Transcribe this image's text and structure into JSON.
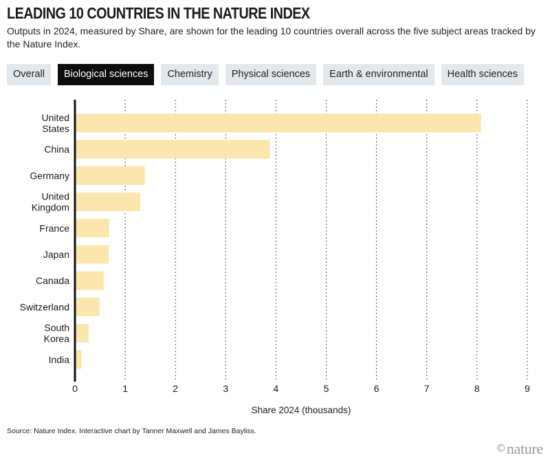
{
  "title": "LEADING 10 COUNTRIES IN THE NATURE INDEX",
  "subtitle": "Outputs in 2024, measured by Share, are shown for the leading 10 countries overall across the five subject areas tracked by the Nature Index.",
  "tabs": [
    {
      "label": "Overall",
      "active": false
    },
    {
      "label": "Biological sciences",
      "active": true
    },
    {
      "label": "Chemistry",
      "active": false
    },
    {
      "label": "Physical sciences",
      "active": false
    },
    {
      "label": "Earth & environmental",
      "active": false
    },
    {
      "label": "Health sciences",
      "active": false
    }
  ],
  "source": "Source: Nature Index. Interactive chart by Tanner Maxwell and James Bayliss.",
  "brand": {
    "symbol": "©",
    "name": "nature"
  },
  "colors": {
    "bar": "#fde6ad",
    "axis": "#111111",
    "grid": "#555555",
    "tab_active": "#0d0d0d",
    "tab": "#e3e8ec"
  },
  "chart_data": {
    "type": "bar",
    "orientation": "horizontal",
    "categories": [
      [
        "United",
        "States"
      ],
      [
        "China"
      ],
      [
        "Germany"
      ],
      [
        "United",
        "Kingdom"
      ],
      [
        "France"
      ],
      [
        "Japan"
      ],
      [
        "Canada"
      ],
      [
        "Switzerland"
      ],
      [
        "South",
        "Korea"
      ],
      [
        "India"
      ]
    ],
    "values": [
      8.08,
      3.88,
      1.39,
      1.3,
      0.68,
      0.67,
      0.57,
      0.49,
      0.27,
      0.13
    ],
    "xlabel": "Share 2024 (thousands)",
    "xlim": [
      0,
      9
    ],
    "xticks": [
      0,
      1,
      2,
      3,
      4,
      5,
      6,
      7,
      8,
      9
    ],
    "grid": "vertical dotted"
  }
}
